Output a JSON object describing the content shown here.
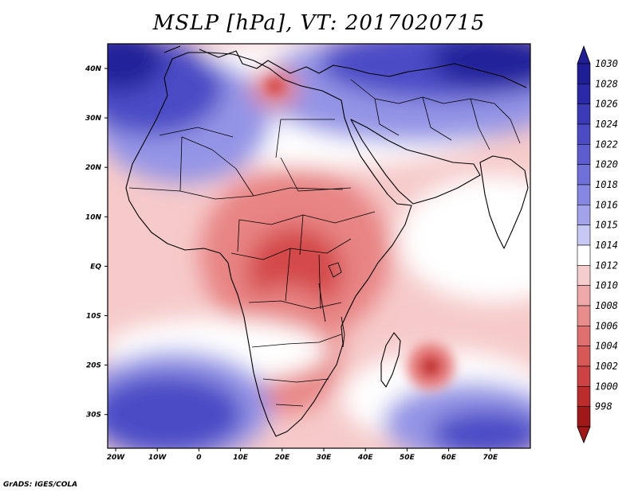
{
  "title": "MSLP [hPa], VT: 2017020715",
  "credit": "GrADS: IGES/COLA",
  "lon_ticks": [
    "20W",
    "10W",
    "0",
    "10E",
    "20E",
    "30E",
    "40E",
    "50E",
    "60E",
    "70E"
  ],
  "lat_ticks": [
    "40N",
    "30N",
    "20N",
    "10N",
    "EQ",
    "10S",
    "20S",
    "30S"
  ],
  "colorbar": {
    "levels": [
      "1030",
      "1028",
      "1026",
      "1024",
      "1022",
      "1020",
      "1018",
      "1016",
      "1015",
      "1014",
      "1012",
      "1010",
      "1008",
      "1006",
      "1004",
      "1002",
      "1000",
      "998"
    ],
    "colors": [
      "#1f1e96",
      "#2a2aa8",
      "#3b3bb8",
      "#4b4bc6",
      "#5d5dd0",
      "#7070da",
      "#8686e3",
      "#a3a3ec",
      "#c8c8f4",
      "#ffffff",
      "#f6cccc",
      "#f0a9a9",
      "#e88c8c",
      "#e07070",
      "#d85858",
      "#cd4242",
      "#bd2c2c",
      "#a01818"
    ]
  },
  "map_colors": {
    "high_deep": "#23229a",
    "high_mid": "#4c4cc6",
    "high_light": "#9494e6",
    "neutral": "#ffffff",
    "low_light": "#f6caca",
    "low_mid": "#e88484",
    "low_deep": "#d44848",
    "cyclone_core": "#b01e1e",
    "coast": "#000000"
  }
}
